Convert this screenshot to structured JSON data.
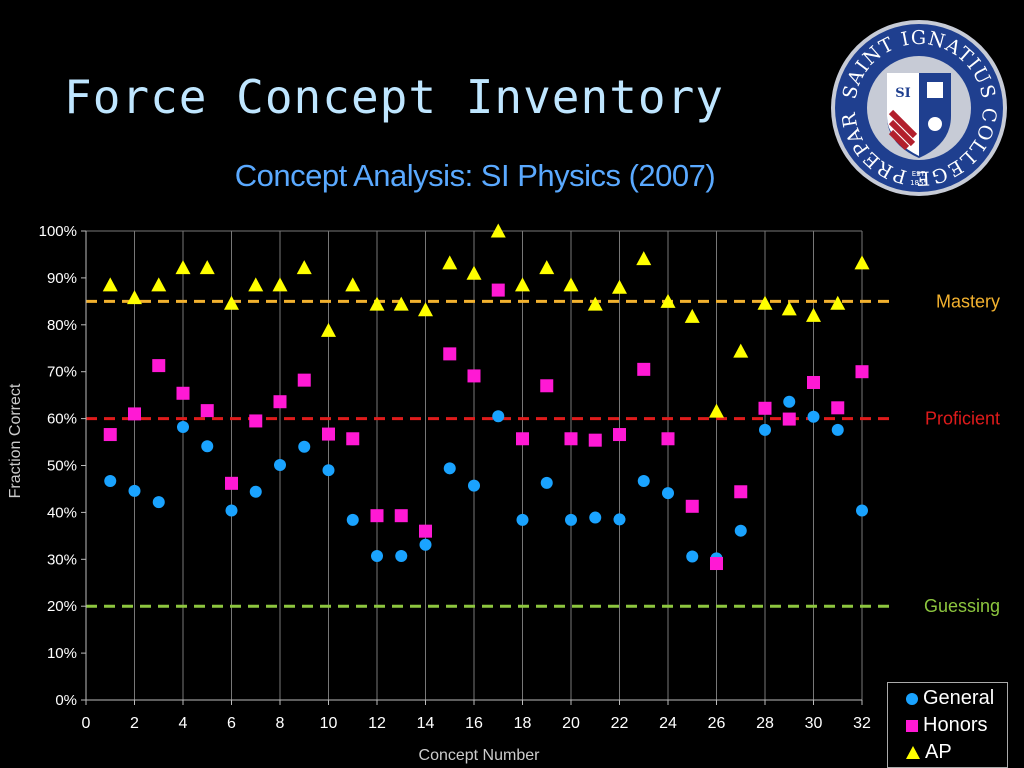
{
  "slide": {
    "title": "Force Concept Inventory"
  },
  "logo": {
    "ring_text": "SAINT IGNATIUS COLLEGE PREPARATORY",
    "shield_text": "SI",
    "est_text": "EST.",
    "year_text": "1855",
    "colors": {
      "ring": "#1f3f8f",
      "ring_edge": "#c7cbd6",
      "shield_blue": "#1f3f8f",
      "shield_red": "#b21f2d"
    }
  },
  "chart_data": {
    "type": "scatter",
    "title": "Concept Analysis: SI Physics (2007)",
    "xlabel": "Concept Number",
    "ylabel": "Fraction Correct",
    "xlim": [
      0,
      32
    ],
    "ylim": [
      0,
      1
    ],
    "x_ticks": [
      0,
      2,
      4,
      6,
      8,
      10,
      12,
      14,
      16,
      18,
      20,
      22,
      24,
      26,
      28,
      30,
      32
    ],
    "x_tick_labels": [
      "0",
      "2",
      "4",
      "6",
      "8",
      "10",
      "12",
      "14",
      "16",
      "18",
      "20",
      "22",
      "24",
      "26",
      "28",
      "30",
      "32"
    ],
    "y_ticks": [
      0,
      0.1,
      0.2,
      0.3,
      0.4,
      0.5,
      0.6,
      0.7,
      0.8,
      0.9,
      1.0
    ],
    "y_tick_labels": [
      "0%",
      "10%",
      "20%",
      "30%",
      "40%",
      "50%",
      "60%",
      "70%",
      "80%",
      "90%",
      "100%"
    ],
    "grid": "vertical",
    "legend": {
      "placement": "bottom-right"
    },
    "x": [
      1,
      2,
      3,
      4,
      5,
      6,
      7,
      8,
      9,
      10,
      11,
      12,
      13,
      14,
      15,
      16,
      17,
      18,
      19,
      20,
      21,
      22,
      23,
      24,
      25,
      26,
      27,
      28,
      29,
      30,
      31,
      32
    ],
    "series": [
      {
        "name": "General",
        "marker": "circle",
        "color": "#1aa3ff",
        "values": [
          0.467,
          0.446,
          0.422,
          0.582,
          0.541,
          0.404,
          0.444,
          0.501,
          0.54,
          0.49,
          0.384,
          0.307,
          0.307,
          0.331,
          0.494,
          0.457,
          0.605,
          0.384,
          0.463,
          0.384,
          0.389,
          0.385,
          0.467,
          0.441,
          0.306,
          0.302,
          0.361,
          0.576,
          0.636,
          0.604,
          0.576,
          0.404
        ]
      },
      {
        "name": "Honors",
        "marker": "square",
        "color": "#ff19d4",
        "values": [
          0.566,
          0.61,
          0.713,
          0.654,
          0.617,
          0.462,
          0.595,
          0.636,
          0.682,
          0.567,
          0.557,
          0.393,
          0.393,
          0.36,
          0.738,
          0.691,
          0.874,
          0.557,
          0.67,
          0.557,
          0.554,
          0.566,
          0.705,
          0.557,
          0.413,
          0.291,
          0.444,
          0.622,
          0.599,
          0.677,
          0.623,
          0.7
        ]
      },
      {
        "name": "AP",
        "marker": "triangle",
        "color": "#ffff00",
        "values": [
          0.885,
          0.858,
          0.885,
          0.922,
          0.922,
          0.846,
          0.885,
          0.885,
          0.922,
          0.788,
          0.885,
          0.844,
          0.844,
          0.832,
          0.932,
          0.91,
          1.0,
          0.885,
          0.922,
          0.885,
          0.844,
          0.88,
          0.941,
          0.85,
          0.818,
          0.616,
          0.744,
          0.846,
          0.834,
          0.82,
          0.846,
          0.932
        ]
      }
    ],
    "reference_lines": [
      {
        "name": "Mastery",
        "y": 0.85,
        "color": "#f2b12e"
      },
      {
        "name": "Proficient",
        "y": 0.6,
        "color": "#e01b1b"
      },
      {
        "name": "Guessing",
        "y": 0.2,
        "color": "#8dc63f"
      }
    ]
  }
}
